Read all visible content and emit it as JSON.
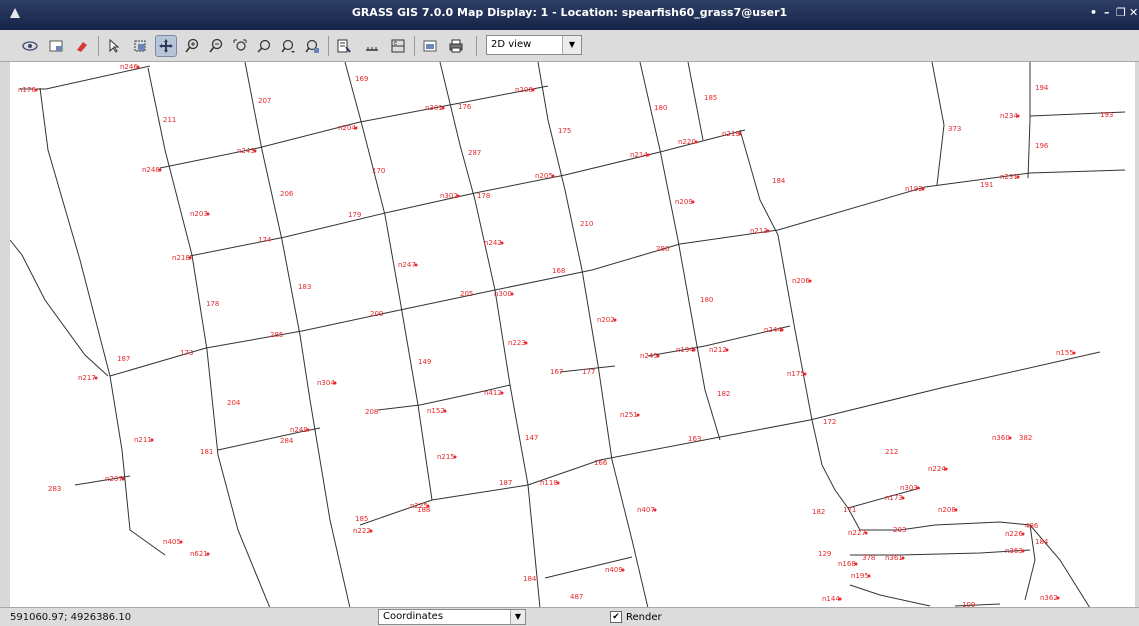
{
  "window": {
    "title": "GRASS GIS 7.0.0 Map Display: 1  - Location: spearfish60_grass7@user1",
    "controls": [
      "•",
      "–",
      "❐",
      "✕"
    ]
  },
  "toolbar": {
    "view_mode": "2D view",
    "buttons": [
      "display-map",
      "render-map",
      "erase",
      "pointer",
      "select-features",
      "pan",
      "zoom-in",
      "zoom-out",
      "zoom-to-extent",
      "zoom-back",
      "zoom-options",
      "zoom-region",
      "query",
      "measure",
      "decorations",
      "save-image",
      "print",
      "view-mode"
    ]
  },
  "statusbar": {
    "coordinates": "591060.97; 4926386.10",
    "mode": "Coordinates",
    "render_label": "Render",
    "render_checked": true
  },
  "map": {
    "line_color": "#333333",
    "label_color": "#e8262a",
    "labels": [
      {
        "t": "n176"
      },
      {
        "t": "n246"
      },
      {
        "t": "211"
      },
      {
        "t": "207"
      },
      {
        "t": "169"
      },
      {
        "t": "n204"
      },
      {
        "t": "n301"
      },
      {
        "t": "176"
      },
      {
        "t": "n208"
      },
      {
        "t": "180"
      },
      {
        "t": "185"
      },
      {
        "t": "194"
      },
      {
        "t": "n234"
      },
      {
        "t": "193"
      },
      {
        "t": "373"
      },
      {
        "t": "175"
      },
      {
        "t": "287"
      },
      {
        "t": "n214"
      },
      {
        "t": "n220"
      },
      {
        "t": "n219"
      },
      {
        "t": "196"
      },
      {
        "t": "n248"
      },
      {
        "t": "n243"
      },
      {
        "t": "170"
      },
      {
        "t": "n205"
      },
      {
        "t": "184"
      },
      {
        "t": "n192"
      },
      {
        "t": "191"
      },
      {
        "t": "n231"
      },
      {
        "t": "206"
      },
      {
        "t": "n302"
      },
      {
        "t": "178"
      },
      {
        "t": "n209"
      },
      {
        "t": "179"
      },
      {
        "t": "n203"
      },
      {
        "t": "210"
      },
      {
        "t": "174"
      },
      {
        "t": "n242"
      },
      {
        "t": "286"
      },
      {
        "t": "n213"
      },
      {
        "t": "n218"
      },
      {
        "t": "n247"
      },
      {
        "t": "168"
      },
      {
        "t": "n206"
      },
      {
        "t": "183"
      },
      {
        "t": "205"
      },
      {
        "t": "n300"
      },
      {
        "t": "180"
      },
      {
        "t": "178"
      },
      {
        "t": "209"
      },
      {
        "t": "n202"
      },
      {
        "t": "173"
      },
      {
        "t": "n244"
      },
      {
        "t": "n223"
      },
      {
        "t": "285"
      },
      {
        "t": "n245"
      },
      {
        "t": "n194"
      },
      {
        "t": "n212"
      },
      {
        "t": "187"
      },
      {
        "t": "149"
      },
      {
        "t": "167"
      },
      {
        "t": "n155"
      },
      {
        "t": "n217"
      },
      {
        "t": "n412"
      },
      {
        "t": "n175"
      },
      {
        "t": "n304"
      },
      {
        "t": "182"
      },
      {
        "t": "204"
      },
      {
        "t": "177"
      },
      {
        "t": "208"
      },
      {
        "t": "n152"
      },
      {
        "t": "n251"
      },
      {
        "t": "163"
      },
      {
        "t": "172"
      },
      {
        "t": "n211"
      },
      {
        "t": "181"
      },
      {
        "t": "147"
      },
      {
        "t": "n249"
      },
      {
        "t": "284"
      },
      {
        "t": "n215"
      },
      {
        "t": "212"
      },
      {
        "t": "166"
      },
      {
        "t": "n224"
      },
      {
        "t": "n207"
      },
      {
        "t": "187"
      },
      {
        "t": "n118"
      },
      {
        "t": "n303"
      },
      {
        "t": "283"
      },
      {
        "t": "n225"
      },
      {
        "t": "n173"
      },
      {
        "t": "n208"
      },
      {
        "t": "185"
      },
      {
        "t": "188"
      },
      {
        "t": "n407"
      },
      {
        "t": "182"
      },
      {
        "t": "171"
      },
      {
        "t": "n222"
      },
      {
        "t": "n227"
      },
      {
        "t": "203"
      },
      {
        "t": "486"
      },
      {
        "t": "n226"
      },
      {
        "t": "184"
      },
      {
        "t": "n405"
      },
      {
        "t": "n621"
      },
      {
        "t": "129"
      },
      {
        "t": "n168"
      },
      {
        "t": "n361"
      },
      {
        "t": "n363"
      },
      {
        "t": "378"
      },
      {
        "t": "n409"
      },
      {
        "t": "n195"
      },
      {
        "t": "184"
      },
      {
        "t": "487"
      },
      {
        "t": "n144"
      },
      {
        "t": "109"
      },
      {
        "t": "n362"
      },
      {
        "t": "n360"
      },
      {
        "t": "382"
      }
    ]
  }
}
